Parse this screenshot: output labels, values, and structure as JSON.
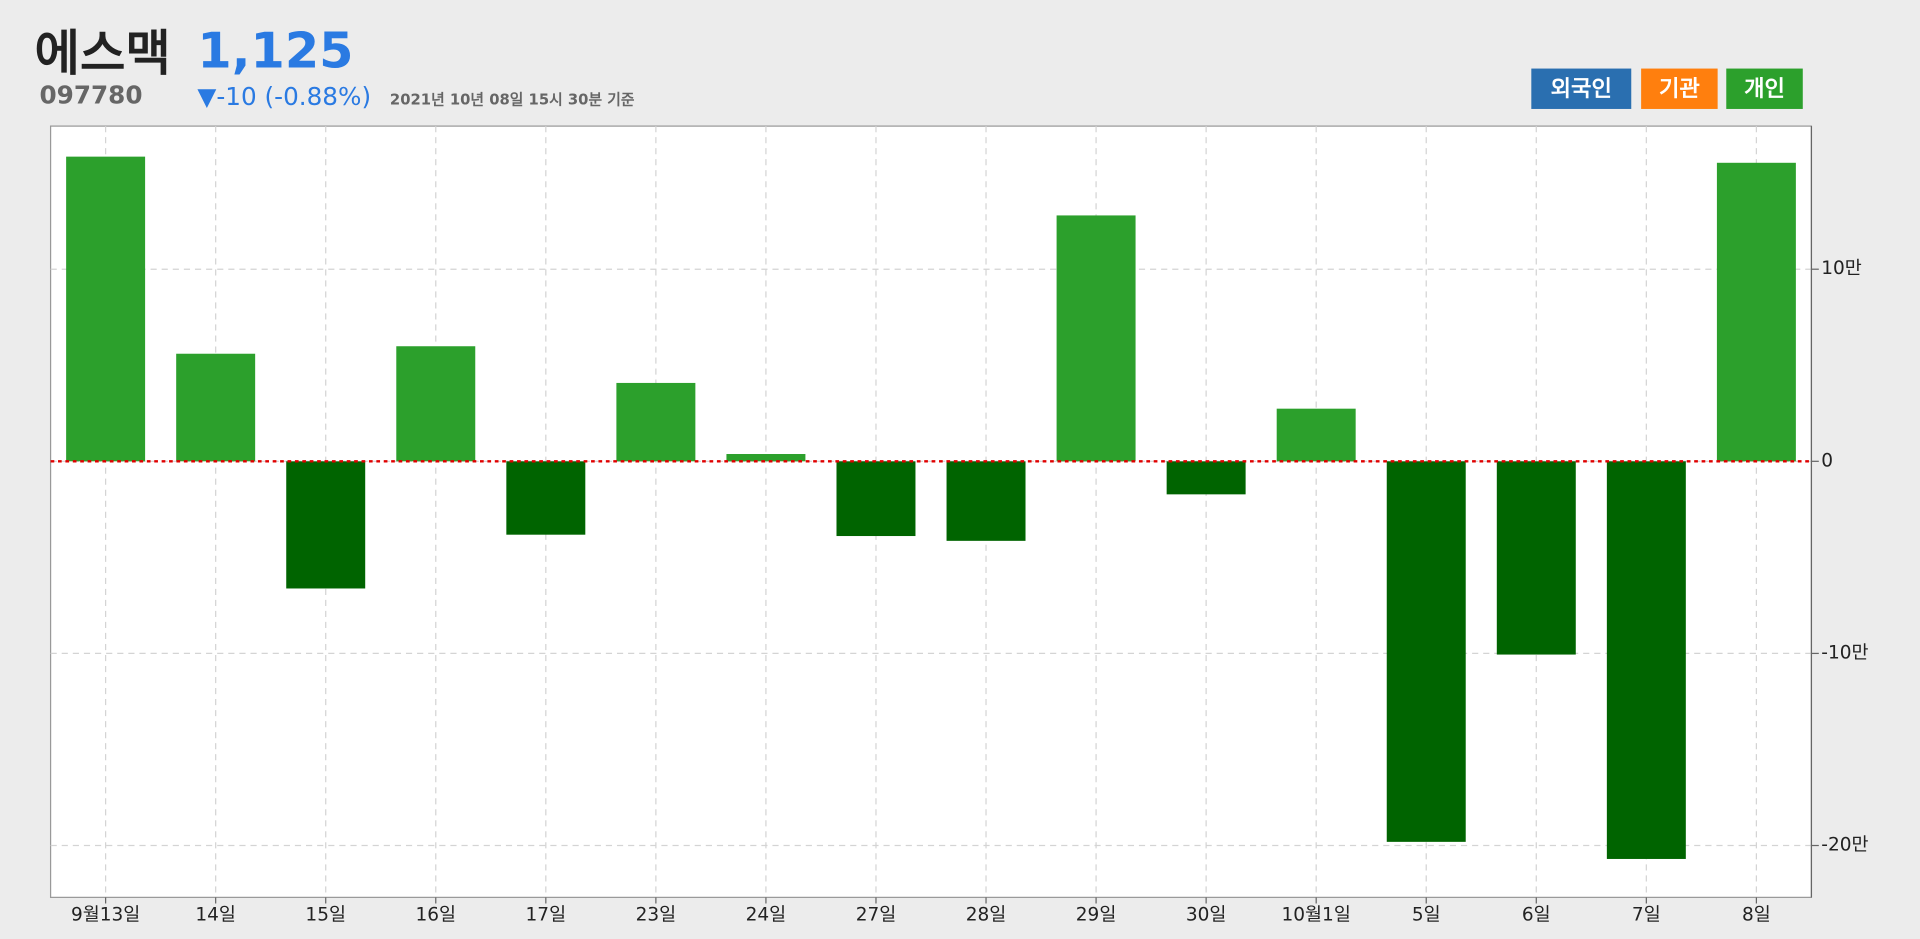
{
  "header": {
    "name": "에스맥",
    "price": "1,125",
    "code": "097780",
    "change": "▼-10 (-0.88%)",
    "timestamp": "2021년 10년 08일 15시 30분 기준",
    "buttons": [
      "외국인",
      "기관",
      "개인"
    ]
  },
  "chart_data": {
    "type": "bar",
    "categories": [
      "9월13일",
      "14일",
      "15일",
      "16일",
      "17일",
      "23일",
      "24일",
      "27일",
      "28일",
      "29일",
      "30일",
      "10월1일",
      "5일",
      "6일",
      "7일",
      "8일"
    ],
    "values": [
      158600,
      56000,
      -66200,
      59900,
      -38200,
      40800,
      3800,
      -38900,
      -41400,
      128000,
      -17200,
      27400,
      -198100,
      -100600,
      -207000,
      155400
    ],
    "color": "#2ca02c",
    "negative_color": "#006400",
    "ylim": [
      -227000,
      174500
    ],
    "yticks": [
      {
        "value": -200000,
        "label": "-20만"
      },
      {
        "value": -100000,
        "label": "-10만"
      },
      0,
      {
        "value": 100000,
        "label": "10만"
      }
    ],
    "grid": true
  }
}
